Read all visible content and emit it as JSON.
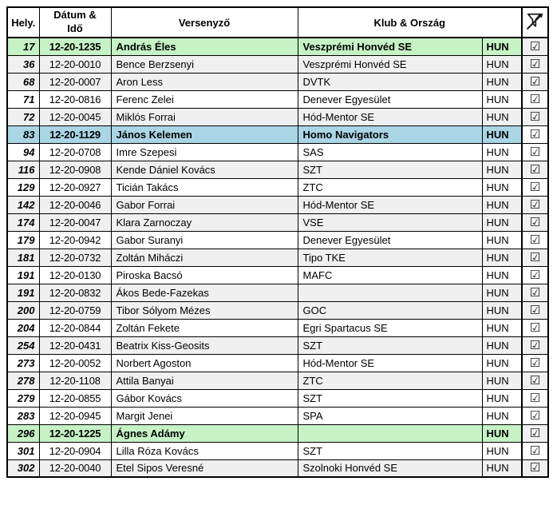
{
  "table": {
    "columns": {
      "place": "Hely.",
      "datetime": "Dátum &\nIdő",
      "competitor": "Versenyző",
      "club": "Klub & Ország"
    },
    "filter_icon": "filter-off-icon",
    "checkbox_glyph": "☑",
    "colors": {
      "green": "#c6f2c6",
      "blue": "#aad5e5",
      "gray": "#f0f0f0",
      "white": "#ffffff",
      "border": "#000000"
    },
    "rows": [
      {
        "place": "17",
        "datetime": "12-20-1235",
        "name": "András Éles",
        "club": "Veszprémi Honvéd SE",
        "country": "HUN",
        "highlight": "green",
        "stripe": "gray",
        "checked": true
      },
      {
        "place": "36",
        "datetime": "12-20-0010",
        "name": "Bence Berzsenyi",
        "club": "Veszprémi Honvéd SE",
        "country": "HUN",
        "highlight": "none",
        "stripe": "gray",
        "checked": true
      },
      {
        "place": "68",
        "datetime": "12-20-0007",
        "name": "Aron Less",
        "club": "DVTK",
        "country": "HUN",
        "highlight": "none",
        "stripe": "gray",
        "checked": true
      },
      {
        "place": "71",
        "datetime": "12-20-0816",
        "name": "Ferenc Zelei",
        "club": "Denever Egyesület",
        "country": "HUN",
        "highlight": "none",
        "stripe": "white",
        "checked": true
      },
      {
        "place": "72",
        "datetime": "12-20-0045",
        "name": "Miklós Forrai",
        "club": "Hód-Mentor SE",
        "country": "HUN",
        "highlight": "none",
        "stripe": "gray",
        "checked": true
      },
      {
        "place": "83",
        "datetime": "12-20-1129",
        "name": "János Kelemen",
        "club": "Homo Navigators",
        "country": "HUN",
        "highlight": "blue",
        "stripe": "white",
        "checked": true
      },
      {
        "place": "94",
        "datetime": "12-20-0708",
        "name": "Imre Szepesi",
        "club": "SAS",
        "country": "HUN",
        "highlight": "none",
        "stripe": "white",
        "checked": true
      },
      {
        "place": "116",
        "datetime": "12-20-0908",
        "name": "Kende Dániel Kovács",
        "club": "SZT",
        "country": "HUN",
        "highlight": "none",
        "stripe": "gray",
        "checked": true
      },
      {
        "place": "129",
        "datetime": "12-20-0927",
        "name": "Ticián Takács",
        "club": "ZTC",
        "country": "HUN",
        "highlight": "none",
        "stripe": "white",
        "checked": true
      },
      {
        "place": "142",
        "datetime": "12-20-0046",
        "name": "Gabor Forrai",
        "club": "Hód-Mentor SE",
        "country": "HUN",
        "highlight": "none",
        "stripe": "gray",
        "checked": true
      },
      {
        "place": "174",
        "datetime": "12-20-0047",
        "name": "Klara Zarnoczay",
        "club": "VSE",
        "country": "HUN",
        "highlight": "none",
        "stripe": "gray",
        "checked": true
      },
      {
        "place": "179",
        "datetime": "12-20-0942",
        "name": "Gabor Suranyi",
        "club": "Denever Egyesület",
        "country": "HUN",
        "highlight": "none",
        "stripe": "white",
        "checked": true
      },
      {
        "place": "181",
        "datetime": "12-20-0732",
        "name": "Zoltán Miháczi",
        "club": "Tipo TKE",
        "country": "HUN",
        "highlight": "none",
        "stripe": "gray",
        "checked": true
      },
      {
        "place": "191",
        "datetime": "12-20-0130",
        "name": "Piroska Bacsó",
        "club": "MAFC",
        "country": "HUN",
        "highlight": "none",
        "stripe": "white",
        "checked": true
      },
      {
        "place": "191",
        "datetime": "12-20-0832",
        "name": "Ákos Bede-Fazekas",
        "club": "",
        "country": "HUN",
        "highlight": "none",
        "stripe": "gray",
        "checked": true
      },
      {
        "place": "200",
        "datetime": "12-20-0759",
        "name": "Tibor Sólyom Mézes",
        "club": "GOC",
        "country": "HUN",
        "highlight": "none",
        "stripe": "gray",
        "checked": true
      },
      {
        "place": "204",
        "datetime": "12-20-0844",
        "name": "Zoltán Fekete",
        "club": "Egri Spartacus SE",
        "country": "HUN",
        "highlight": "none",
        "stripe": "white",
        "checked": true
      },
      {
        "place": "254",
        "datetime": "12-20-0431",
        "name": "Beatrix Kiss-Geosits",
        "club": "SZT",
        "country": "HUN",
        "highlight": "none",
        "stripe": "gray",
        "checked": true
      },
      {
        "place": "273",
        "datetime": "12-20-0052",
        "name": "Norbert Agoston",
        "club": "Hód-Mentor SE",
        "country": "HUN",
        "highlight": "none",
        "stripe": "white",
        "checked": true
      },
      {
        "place": "278",
        "datetime": "12-20-1108",
        "name": "Attila Banyai",
        "club": "ZTC",
        "country": "HUN",
        "highlight": "none",
        "stripe": "gray",
        "checked": true
      },
      {
        "place": "279",
        "datetime": "12-20-0855",
        "name": "Gábor Kovács",
        "club": "SZT",
        "country": "HUN",
        "highlight": "none",
        "stripe": "white",
        "checked": true
      },
      {
        "place": "283",
        "datetime": "12-20-0945",
        "name": "Margit Jenei",
        "club": "SPA",
        "country": "HUN",
        "highlight": "none",
        "stripe": "white",
        "checked": true
      },
      {
        "place": "296",
        "datetime": "12-20-1225",
        "name": "Ágnes Adámy",
        "club": "",
        "country": "HUN",
        "highlight": "green",
        "stripe": "gray",
        "checked": true
      },
      {
        "place": "301",
        "datetime": "12-20-0904",
        "name": "Lilla Róza Kovács",
        "club": "SZT",
        "country": "HUN",
        "highlight": "none",
        "stripe": "white",
        "checked": true
      },
      {
        "place": "302",
        "datetime": "12-20-0040",
        "name": "Etel Sipos Veresné",
        "club": "Szolnoki Honvéd SE",
        "country": "HUN",
        "highlight": "none",
        "stripe": "gray",
        "checked": true
      }
    ]
  }
}
